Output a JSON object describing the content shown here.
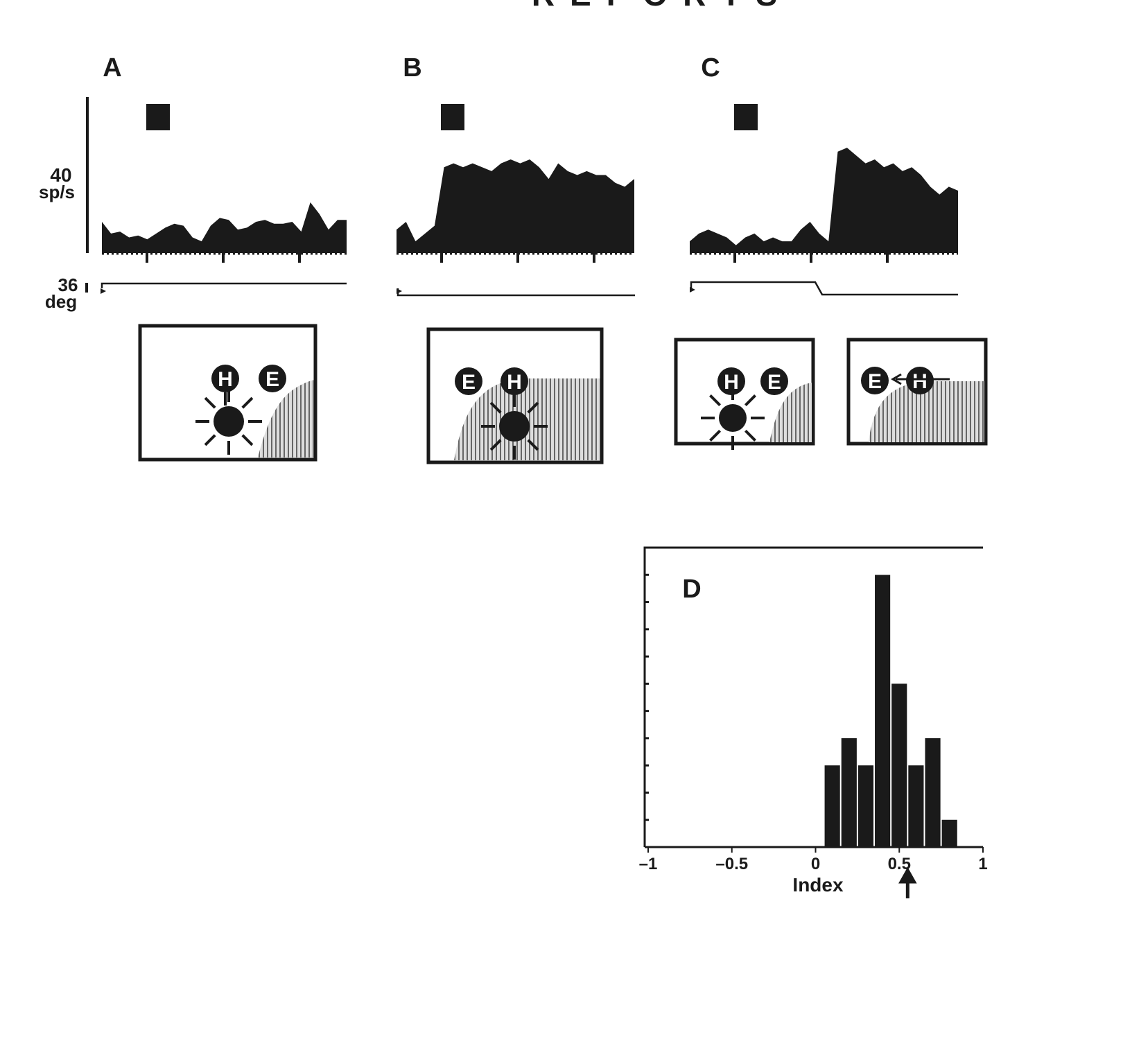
{
  "header": "REPORTS",
  "rate_scale": {
    "value": 40,
    "unit": "sp/s"
  },
  "eye_scale": {
    "value": 36,
    "unit": "deg"
  },
  "diagram_labels": {
    "head": "H",
    "eye": "E"
  },
  "panels": [
    {
      "label": "A",
      "rate": [
        8,
        5,
        5.5,
        4,
        4.5,
        3.5,
        5,
        6.5,
        7.5,
        7,
        4,
        3,
        7,
        9,
        8.5,
        6,
        6.5,
        8,
        8.5,
        7.5,
        7.5,
        8,
        5.5,
        13,
        10,
        6,
        8.5,
        8.5
      ]
    },
    {
      "label": "B",
      "rate": [
        6,
        8,
        3,
        5,
        7,
        22,
        23,
        22,
        23,
        22,
        21,
        23,
        24,
        23,
        24,
        22,
        19,
        23,
        21,
        20,
        21,
        20,
        20,
        18,
        17,
        19
      ]
    },
    {
      "label": "C",
      "rate": [
        3,
        5,
        6,
        5,
        4,
        2,
        4,
        5,
        3,
        4,
        3,
        3,
        6,
        8,
        5,
        3,
        26,
        27,
        25,
        23,
        24,
        22,
        23,
        21,
        22,
        20,
        17,
        15,
        17,
        16
      ]
    }
  ],
  "chart_data": {
    "type": "histogram",
    "label": "D",
    "x_label": "Index",
    "color": "#1a1a1a",
    "bins": [
      0.05,
      0.15,
      0.25,
      0.35,
      0.45,
      0.55,
      0.65,
      0.75,
      0.85
    ],
    "counts": [
      3,
      4,
      3,
      10,
      6,
      3,
      4,
      1
    ],
    "xlim": [
      -1,
      1
    ],
    "ylim": [
      0,
      11
    ],
    "xticks": [
      {
        "value": -1,
        "label": "–1"
      },
      {
        "value": -0.5,
        "label": "–0.5"
      },
      0,
      0.5,
      1
    ],
    "yticks": [
      1,
      2,
      3,
      4,
      5,
      6,
      7,
      8,
      9,
      10
    ],
    "mean_marker": 0.55
  }
}
